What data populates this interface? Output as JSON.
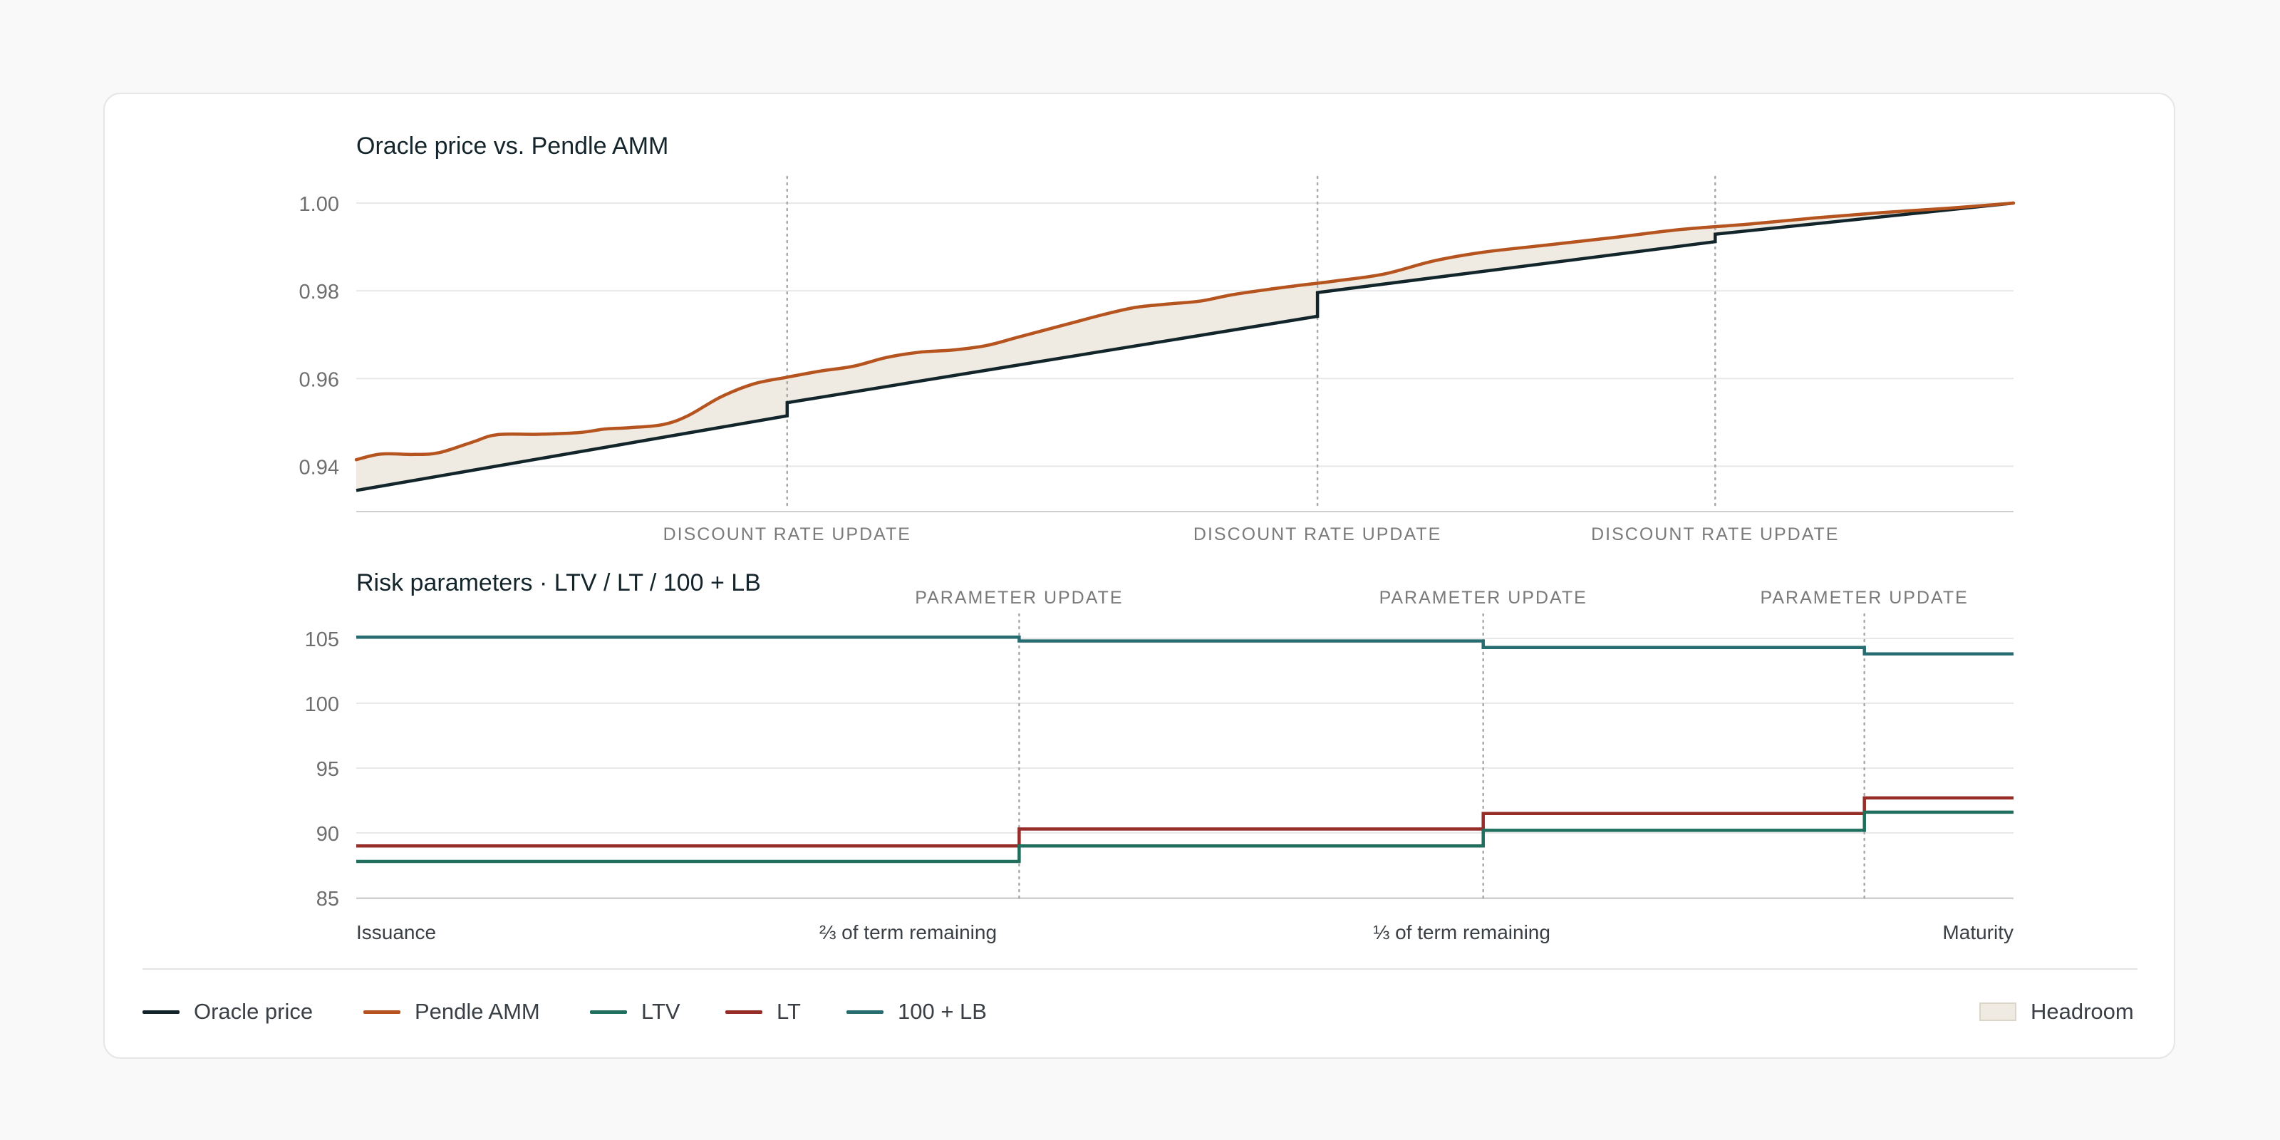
{
  "colors": {
    "oracle": "#12252b",
    "amm": "#b5541f",
    "ltv": "#1f6e5e",
    "lt": "#962d28",
    "lb": "#276c70",
    "headroom": "#f0ebe2",
    "grid": "#e8e8e8",
    "axis": "#cfcfcf",
    "tick": "#6e6e6e",
    "annot": "#7a7a7a"
  },
  "chart_data": [
    {
      "type": "line",
      "title": "Oracle price vs. Pendle AMM",
      "x_domain": [
        0,
        1
      ],
      "ylim": [
        0.93,
        1.0
      ],
      "yticks": [
        "1.00",
        "0.98",
        "0.96",
        "0.94"
      ],
      "ytick_values": [
        1.0,
        0.98,
        0.96,
        0.94
      ],
      "annotations": [
        {
          "x": 0.26,
          "label": "DISCOUNT RATE UPDATE"
        },
        {
          "x": 0.58,
          "label": "DISCOUNT RATE UPDATE"
        },
        {
          "x": 0.82,
          "label": "DISCOUNT RATE UPDATE"
        }
      ],
      "series": [
        {
          "name": "Oracle price",
          "step": true,
          "segments": [
            [
              [
                0.0,
                0.9345
              ],
              [
                0.26,
                0.9515
              ]
            ],
            [
              [
                0.26,
                0.9545
              ],
              [
                0.58,
                0.9742
              ]
            ],
            [
              [
                0.58,
                0.9796
              ],
              [
                0.82,
                0.9912
              ]
            ],
            [
              [
                0.82,
                0.9929
              ],
              [
                1.0,
                1.0
              ]
            ]
          ]
        },
        {
          "name": "Pendle AMM",
          "x": [
            0.0,
            0.015,
            0.035,
            0.05,
            0.07,
            0.085,
            0.11,
            0.135,
            0.15,
            0.165,
            0.185,
            0.2,
            0.22,
            0.24,
            0.26,
            0.28,
            0.3,
            0.32,
            0.34,
            0.36,
            0.38,
            0.4,
            0.43,
            0.45,
            0.47,
            0.49,
            0.51,
            0.53,
            0.56,
            0.59,
            0.62,
            0.65,
            0.68,
            0.72,
            0.76,
            0.8,
            0.84,
            0.88,
            0.92,
            0.96,
            1.0
          ],
          "values": [
            0.9415,
            0.9428,
            0.9427,
            0.9431,
            0.9455,
            0.9472,
            0.9473,
            0.9477,
            0.9485,
            0.9488,
            0.9495,
            0.9515,
            0.9558,
            0.9588,
            0.9603,
            0.9617,
            0.9628,
            0.9648,
            0.966,
            0.9665,
            0.9675,
            0.9695,
            0.9725,
            0.9745,
            0.9762,
            0.977,
            0.9777,
            0.9792,
            0.9808,
            0.9822,
            0.9838,
            0.9868,
            0.9888,
            0.9905,
            0.9922,
            0.994,
            0.9952,
            0.9966,
            0.9978,
            0.9988,
            1.0
          ]
        }
      ],
      "fill_between": {
        "upper": "Pendle AMM",
        "lower": "Oracle price",
        "name": "Headroom"
      }
    },
    {
      "type": "line",
      "title": "Risk parameters · LTV / LT / 100 + LB",
      "x_domain": [
        0,
        1
      ],
      "ylim": [
        85,
        105
      ],
      "yticks": [
        "105",
        "100",
        "95",
        "90",
        "85"
      ],
      "ytick_values": [
        105,
        100,
        95,
        90,
        85
      ],
      "xticks": [
        {
          "x": 0.0,
          "label": "Issuance",
          "anchor": "start"
        },
        {
          "x": 0.333,
          "label": "⅔ of term remaining",
          "anchor": "middle"
        },
        {
          "x": 0.667,
          "label": "⅓ of term remaining",
          "anchor": "middle"
        },
        {
          "x": 1.0,
          "label": "Maturity",
          "anchor": "end"
        }
      ],
      "annotations": [
        {
          "x": 0.4,
          "label": "PARAMETER UPDATE"
        },
        {
          "x": 0.68,
          "label": "PARAMETER UPDATE"
        },
        {
          "x": 0.91,
          "label": "PARAMETER UPDATE"
        }
      ],
      "series": [
        {
          "name": "100 + LB",
          "x": [
            0.0,
            0.4,
            0.68,
            0.91,
            1.0
          ],
          "values": [
            105.1,
            104.8,
            104.3,
            103.8,
            103.8
          ]
        },
        {
          "name": "LT",
          "x": [
            0.0,
            0.4,
            0.68,
            0.91,
            1.0
          ],
          "values": [
            89.0,
            90.3,
            91.5,
            92.7,
            92.7
          ]
        },
        {
          "name": "LTV",
          "x": [
            0.0,
            0.4,
            0.68,
            0.91,
            1.0
          ],
          "values": [
            87.8,
            89.0,
            90.2,
            91.6,
            91.6
          ]
        }
      ]
    }
  ],
  "legend": {
    "items": [
      {
        "label": "Oracle price",
        "color_key": "oracle",
        "kind": "line"
      },
      {
        "label": "Pendle AMM",
        "color_key": "amm",
        "kind": "line"
      },
      {
        "label": "LTV",
        "color_key": "ltv",
        "kind": "line"
      },
      {
        "label": "LT",
        "color_key": "lt",
        "kind": "line"
      },
      {
        "label": "100 + LB",
        "color_key": "lb",
        "kind": "line"
      }
    ],
    "headroom": {
      "label": "Headroom",
      "color_key": "headroom",
      "kind": "box"
    }
  }
}
